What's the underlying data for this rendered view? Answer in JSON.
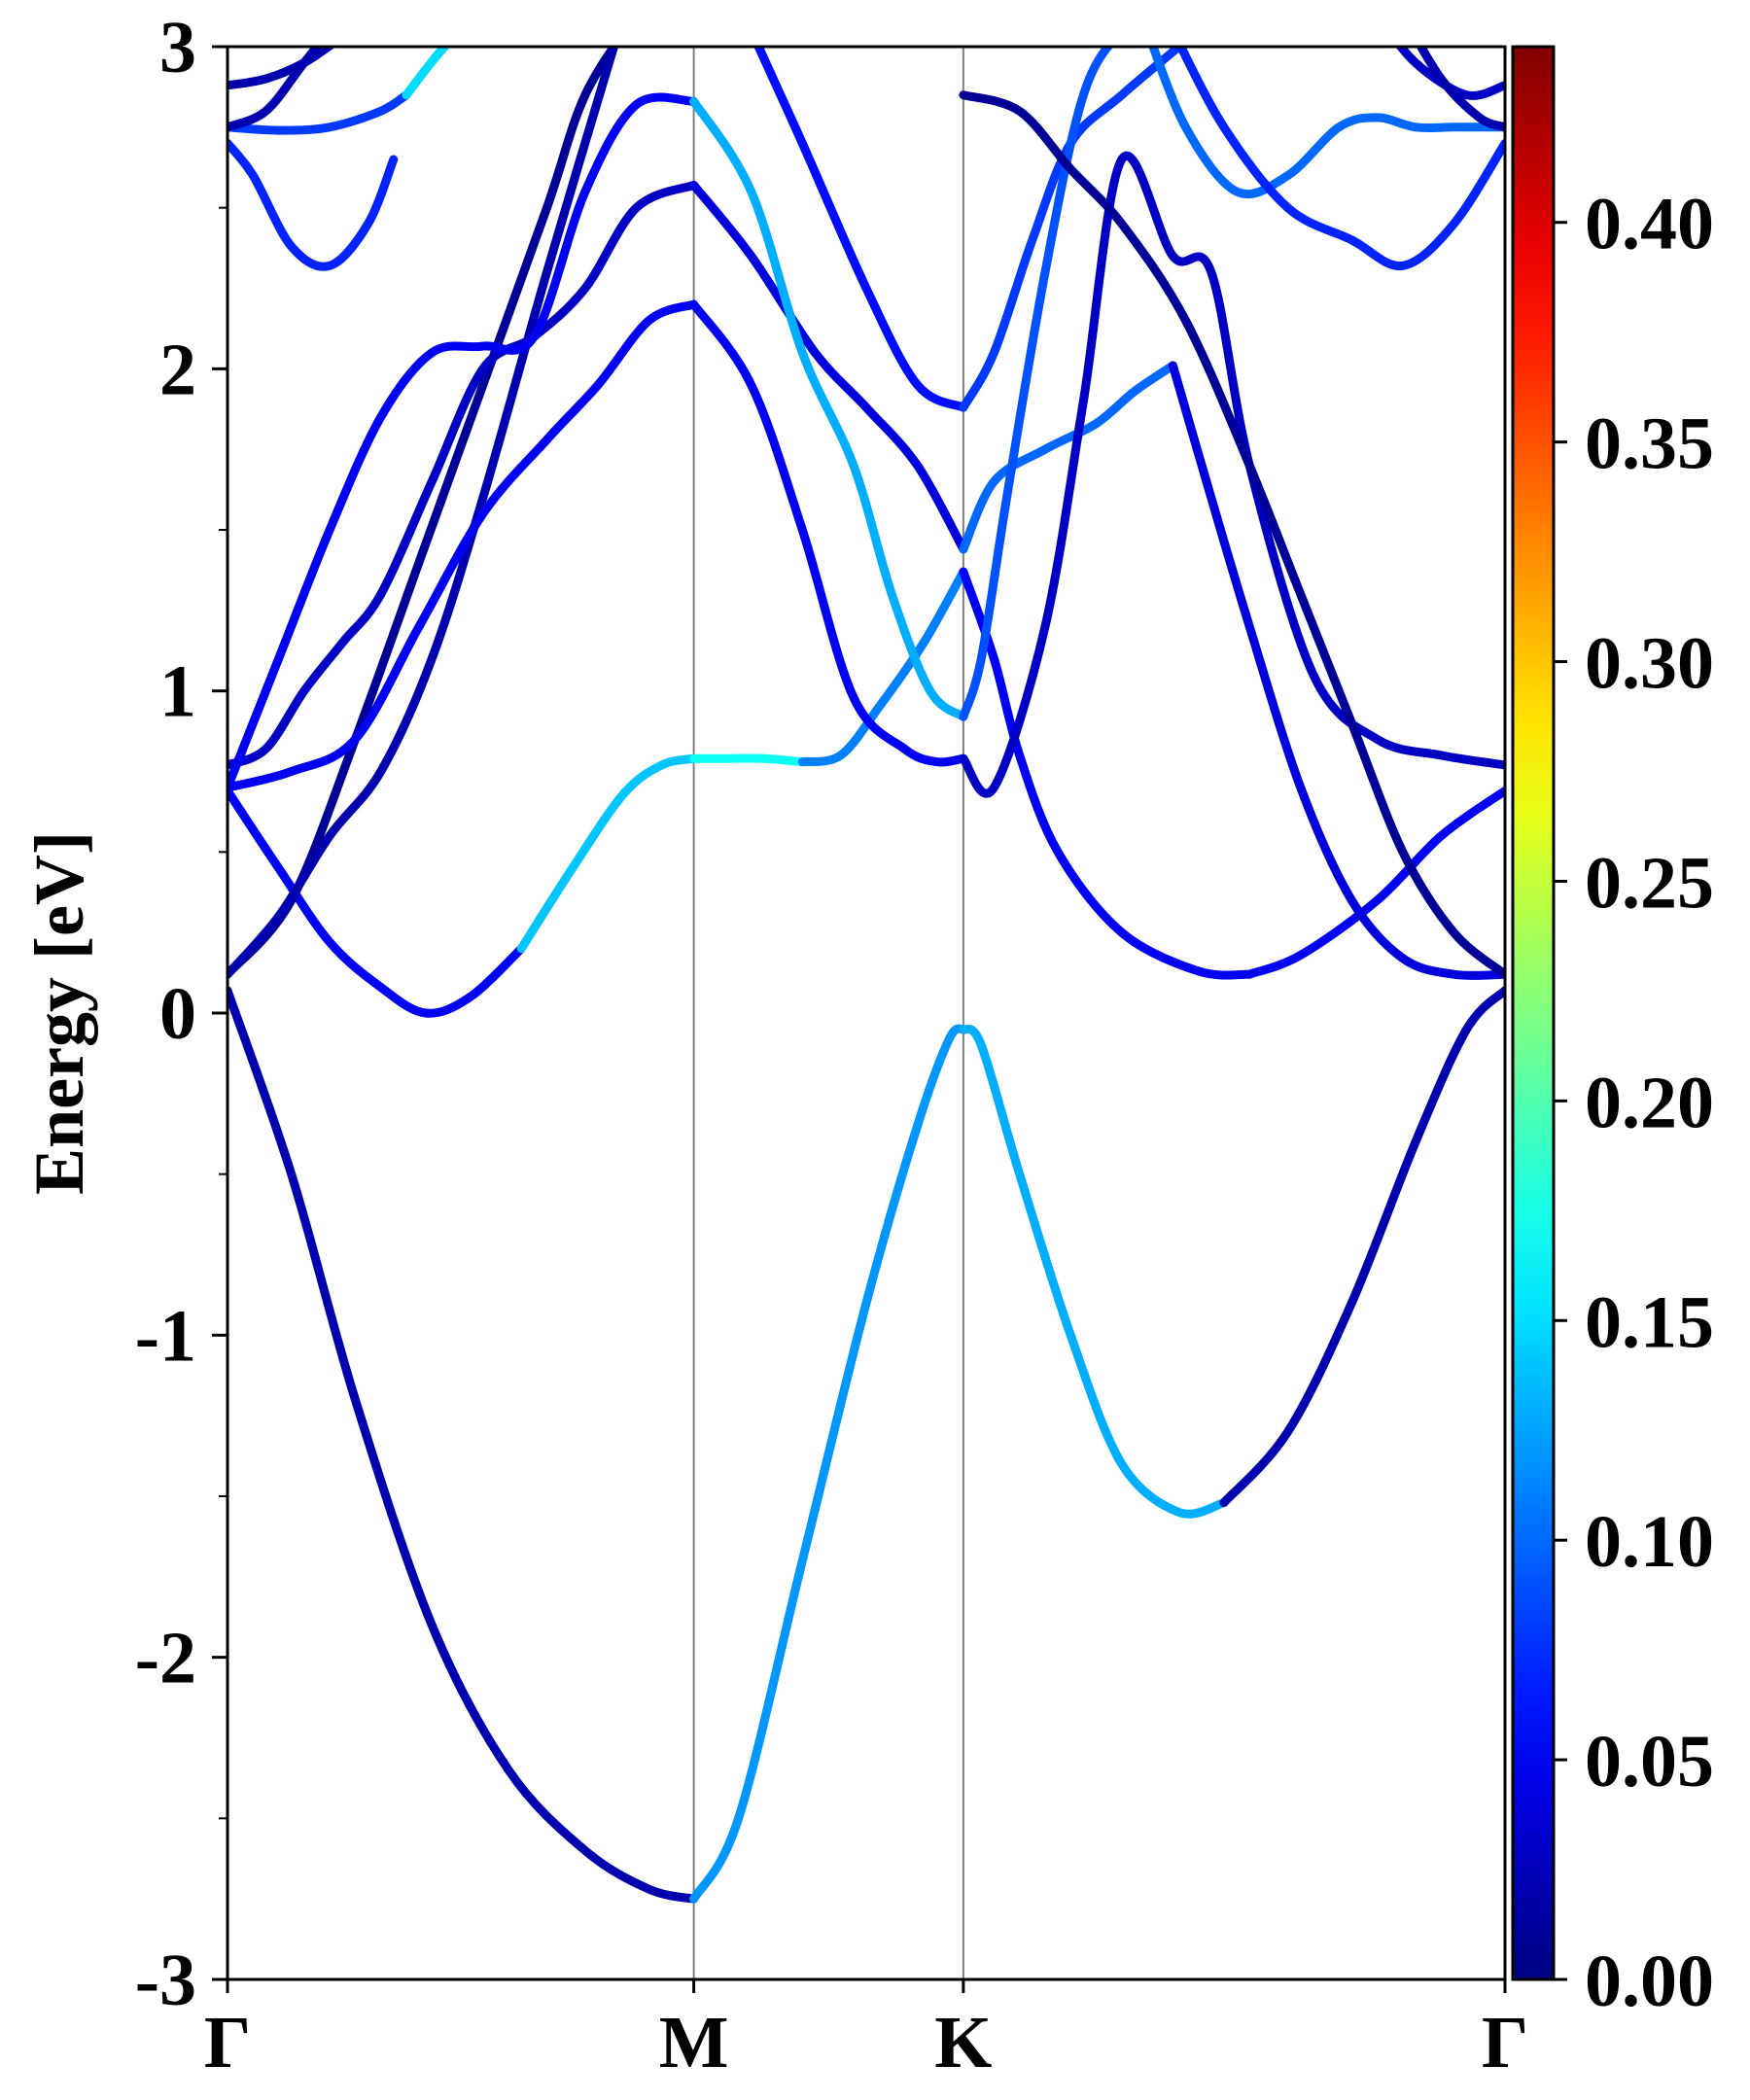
{
  "chart_data": {
    "type": "line",
    "title": "",
    "xlabel": "",
    "ylabel": "Energy [eV]",
    "ylim": [
      -3,
      3
    ],
    "x_ticks": [
      {
        "label": "Γ",
        "pos": 0
      },
      {
        "label": "M",
        "pos": 0.365
      },
      {
        "label": "K",
        "pos": 0.576
      },
      {
        "label": "Γ",
        "pos": 1
      }
    ],
    "y_ticks": [
      -3,
      -2,
      -1,
      0,
      1,
      2,
      3
    ],
    "y_tick_labels": [
      "-3",
      "-2",
      "-1",
      "0",
      "1",
      "2",
      "3"
    ],
    "colorbar": {
      "min": 0.0,
      "max": 0.44,
      "colormap": "jet",
      "ticks": [
        0.0,
        0.05,
        0.1,
        0.15,
        0.2,
        0.25,
        0.3,
        0.35,
        0.4
      ],
      "tick_labels": [
        "0.00",
        "0.05",
        "0.10",
        "0.15",
        "0.20",
        "0.25",
        "0.30",
        "0.35",
        "0.40"
      ]
    },
    "grid": false,
    "series": [
      {
        "weight": 0.02,
        "x": [
          0,
          0.05,
          0.1,
          0.16,
          0.22,
          0.28,
          0.33,
          0.365
        ],
        "y": [
          0.07,
          -0.5,
          -1.2,
          -1.9,
          -2.35,
          -2.6,
          -2.72,
          -2.75
        ]
      },
      {
        "weight": 0.12,
        "x": [
          0.365,
          0.4,
          0.45,
          0.5,
          0.54,
          0.565,
          0.576
        ],
        "y": [
          -2.75,
          -2.5,
          -1.7,
          -0.9,
          -0.35,
          -0.08,
          -0.05
        ]
      },
      {
        "weight": 0.13,
        "x": [
          0.576,
          0.59,
          0.62,
          0.66,
          0.7,
          0.745,
          0.78
        ],
        "y": [
          -0.05,
          -0.1,
          -0.5,
          -1.0,
          -1.4,
          -1.55,
          -1.52
        ]
      },
      {
        "weight": 0.02,
        "x": [
          0.78,
          0.83,
          0.88,
          0.93,
          0.97,
          1.0
        ],
        "y": [
          -1.52,
          -1.3,
          -0.9,
          -0.4,
          -0.05,
          0.07
        ]
      },
      {
        "weight": 0.05,
        "x": [
          0,
          0.04,
          0.08,
          0.12,
          0.155,
          0.19,
          0.23
        ],
        "y": [
          0.69,
          0.45,
          0.22,
          0.08,
          0.0,
          0.05,
          0.2
        ]
      },
      {
        "weight": 0.14,
        "x": [
          0.23,
          0.27,
          0.31,
          0.34,
          0.365
        ],
        "y": [
          0.2,
          0.45,
          0.68,
          0.77,
          0.79
        ]
      },
      {
        "weight": 0.17,
        "x": [
          0.365,
          0.39,
          0.42,
          0.45
        ],
        "y": [
          0.79,
          0.79,
          0.79,
          0.78
        ]
      },
      {
        "weight": 0.11,
        "x": [
          0.45,
          0.48,
          0.51,
          0.545,
          0.576
        ],
        "y": [
          0.78,
          0.8,
          0.95,
          1.15,
          1.37
        ]
      },
      {
        "weight": 0.05,
        "x": [
          0.576,
          0.6,
          0.62,
          0.65,
          0.7,
          0.76,
          0.8
        ],
        "y": [
          1.37,
          1.1,
          0.8,
          0.5,
          0.25,
          0.13,
          0.12
        ]
      },
      {
        "weight": 0.05,
        "x": [
          0.8,
          0.84,
          0.9,
          0.95,
          1.0
        ],
        "y": [
          0.12,
          0.18,
          0.35,
          0.55,
          0.69
        ]
      },
      {
        "weight": 0.01,
        "x": [
          0,
          0.05,
          0.1,
          0.15,
          0.2,
          0.25,
          0.28,
          0.32
        ],
        "y": [
          0.12,
          0.35,
          0.85,
          1.4,
          1.95,
          2.5,
          2.85,
          3.1
        ]
      },
      {
        "weight": 0.02,
        "x": [
          0,
          0.04,
          0.08,
          0.12,
          0.16,
          0.2,
          0.25,
          0.31
        ],
        "y": [
          0.12,
          0.3,
          0.55,
          0.75,
          1.1,
          1.6,
          2.3,
          3.1
        ]
      },
      {
        "weight": 0.03,
        "x": [
          0,
          0.03,
          0.06,
          0.09,
          0.12,
          0.16,
          0.2,
          0.24,
          0.28,
          0.32,
          0.365
        ],
        "y": [
          0.77,
          0.82,
          1.0,
          1.15,
          1.3,
          1.65,
          2.0,
          2.1,
          2.25,
          2.5,
          2.57
        ]
      },
      {
        "weight": 0.05,
        "x": [
          0,
          0.04,
          0.08,
          0.12,
          0.16,
          0.2,
          0.24,
          0.28,
          0.32,
          0.365
        ],
        "y": [
          0.7,
          1.1,
          1.5,
          1.85,
          2.05,
          2.07,
          2.1,
          2.55,
          2.82,
          2.83
        ]
      },
      {
        "weight": 0.05,
        "x": [
          0,
          0.05,
          0.1,
          0.15,
          0.2,
          0.25,
          0.29,
          0.33,
          0.365
        ],
        "y": [
          0.7,
          0.75,
          0.85,
          1.2,
          1.55,
          1.78,
          1.95,
          2.15,
          2.2
        ]
      },
      {
        "weight": 0.05,
        "x": [
          0.365,
          0.41,
          0.45,
          0.49,
          0.53,
          0.555,
          0.576
        ],
        "y": [
          2.2,
          1.95,
          1.5,
          0.98,
          0.82,
          0.78,
          0.79
        ]
      },
      {
        "weight": 0.04,
        "x": [
          0.365,
          0.41,
          0.46,
          0.5,
          0.54,
          0.576
        ],
        "y": [
          2.57,
          2.35,
          2.05,
          1.88,
          1.7,
          1.44
        ]
      },
      {
        "weight": 0.13,
        "x": [
          0.365,
          0.41,
          0.45,
          0.49,
          0.52,
          0.55,
          0.576
        ],
        "y": [
          2.83,
          2.55,
          2.05,
          1.7,
          1.3,
          1.0,
          0.92
        ]
      },
      {
        "weight": 0.06,
        "x": [
          0.41,
          0.45,
          0.5,
          0.54,
          0.576
        ],
        "y": [
          3.05,
          2.7,
          2.25,
          1.95,
          1.88
        ]
      },
      {
        "weight": 0.08,
        "x": [
          0.576,
          0.6,
          0.63,
          0.66,
          0.7,
          0.76
        ],
        "y": [
          1.88,
          2.05,
          2.4,
          2.7,
          2.85,
          3.05
        ]
      },
      {
        "weight": 0.1,
        "x": [
          0.576,
          0.6,
          0.64,
          0.68,
          0.71,
          0.74
        ],
        "y": [
          1.44,
          1.65,
          1.75,
          1.83,
          1.93,
          2.01
        ]
      },
      {
        "weight": 0.04,
        "x": [
          0.74,
          0.77,
          0.8,
          0.84,
          0.88,
          0.92,
          0.96,
          1.0
        ],
        "y": [
          2.01,
          1.6,
          1.2,
          0.7,
          0.35,
          0.17,
          0.12,
          0.12
        ]
      },
      {
        "weight": 0.09,
        "x": [
          0.576,
          0.59,
          0.61,
          0.64,
          0.67,
          0.7,
          0.72
        ],
        "y": [
          0.92,
          1.1,
          1.6,
          2.3,
          2.85,
          3.05,
          3.1
        ]
      },
      {
        "weight": 0.03,
        "x": [
          0.576,
          0.6,
          0.64,
          0.67,
          0.7,
          0.74,
          0.77,
          0.8,
          0.85,
          0.9,
          0.95,
          1.0
        ],
        "y": [
          0.79,
          0.7,
          1.2,
          1.9,
          2.65,
          2.35,
          2.3,
          1.7,
          1.05,
          0.85,
          0.8,
          0.77
        ]
      },
      {
        "weight": 0.01,
        "x": [
          0.576,
          0.62,
          0.66,
          0.7,
          0.75,
          0.8,
          0.84,
          0.88,
          0.92,
          0.96,
          1.0
        ],
        "y": [
          2.85,
          2.8,
          2.62,
          2.45,
          2.15,
          1.7,
          1.3,
          0.9,
          0.5,
          0.25,
          0.12
        ]
      },
      {
        "weight": 0.1,
        "x": [
          0.72,
          0.75,
          0.79,
          0.83,
          0.87,
          0.9,
          0.93,
          0.96,
          1.0
        ],
        "y": [
          3.05,
          2.75,
          2.55,
          2.6,
          2.75,
          2.78,
          2.75,
          2.75,
          2.75
        ]
      },
      {
        "weight": 0.07,
        "x": [
          0.74,
          0.78,
          0.83,
          0.88,
          0.92,
          0.96,
          1.0
        ],
        "y": [
          3.05,
          2.75,
          2.5,
          2.4,
          2.32,
          2.45,
          2.7
        ]
      },
      {
        "weight": 0.07,
        "x": [
          0,
          0.02,
          0.05,
          0.08,
          0.11,
          0.13
        ],
        "y": [
          2.7,
          2.6,
          2.38,
          2.32,
          2.45,
          2.65
        ]
      },
      {
        "weight": 0.08,
        "x": [
          0,
          0.04,
          0.08,
          0.12,
          0.14
        ],
        "y": [
          2.75,
          2.74,
          2.75,
          2.8,
          2.85
        ]
      },
      {
        "weight": 0.15,
        "x": [
          0.14,
          0.17,
          0.2
        ],
        "y": [
          2.85,
          3.0,
          3.1
        ]
      },
      {
        "weight": 0.02,
        "x": [
          0,
          0.03,
          0.06,
          0.09,
          0.12
        ],
        "y": [
          2.88,
          2.9,
          2.95,
          3.03,
          3.1
        ]
      },
      {
        "weight": 0.02,
        "x": [
          0,
          0.03,
          0.06,
          0.09
        ],
        "y": [
          2.75,
          2.8,
          2.95,
          3.1
        ]
      },
      {
        "weight": 0.03,
        "x": [
          0.9,
          0.93,
          0.97,
          1.0
        ],
        "y": [
          3.1,
          2.95,
          2.85,
          2.88
        ]
      },
      {
        "weight": 0.02,
        "x": [
          0.92,
          0.95,
          0.98,
          1.0
        ],
        "y": [
          3.1,
          2.9,
          2.78,
          2.75
        ]
      }
    ]
  }
}
